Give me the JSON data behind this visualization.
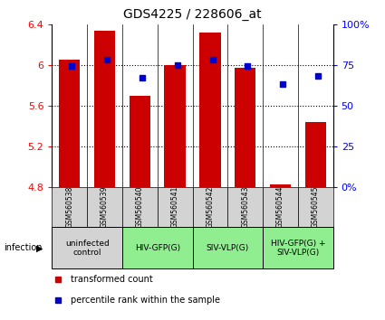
{
  "title": "GDS4225 / 228606_at",
  "samples": [
    "GSM560538",
    "GSM560539",
    "GSM560540",
    "GSM560541",
    "GSM560542",
    "GSM560543",
    "GSM560544",
    "GSM560545"
  ],
  "transformed_counts": [
    6.05,
    6.33,
    5.7,
    6.0,
    6.32,
    5.97,
    4.83,
    5.44
  ],
  "percentile_ranks": [
    74,
    78,
    67,
    75,
    78,
    74,
    63,
    68
  ],
  "ylim_left": [
    4.8,
    6.4
  ],
  "ylim_right": [
    0,
    100
  ],
  "yticks_left": [
    4.8,
    5.2,
    5.6,
    6.0,
    6.4
  ],
  "yticks_right": [
    0,
    25,
    50,
    75,
    100
  ],
  "ytick_labels_left": [
    "4.8",
    "5.2",
    "5.6",
    "6",
    "6.4"
  ],
  "ytick_labels_right": [
    "0%",
    "25",
    "50",
    "75",
    "100%"
  ],
  "bar_color": "#cc0000",
  "dot_color": "#0000cc",
  "bar_bottom": 4.8,
  "grid_lines": [
    5.2,
    5.6,
    6.0
  ],
  "groups": [
    {
      "label": "uninfected\ncontrol",
      "start": 0,
      "end": 2,
      "color": "#d3d3d3"
    },
    {
      "label": "HIV-GFP(G)",
      "start": 2,
      "end": 4,
      "color": "#90ee90"
    },
    {
      "label": "SIV-VLP(G)",
      "start": 4,
      "end": 6,
      "color": "#90ee90"
    },
    {
      "label": "HIV-GFP(G) +\nSIV-VLP(G)",
      "start": 6,
      "end": 8,
      "color": "#90ee90"
    }
  ],
  "infection_label": "infection",
  "legend_bar_label": "transformed count",
  "legend_dot_label": "percentile rank within the sample",
  "sample_box_color": "#d3d3d3"
}
